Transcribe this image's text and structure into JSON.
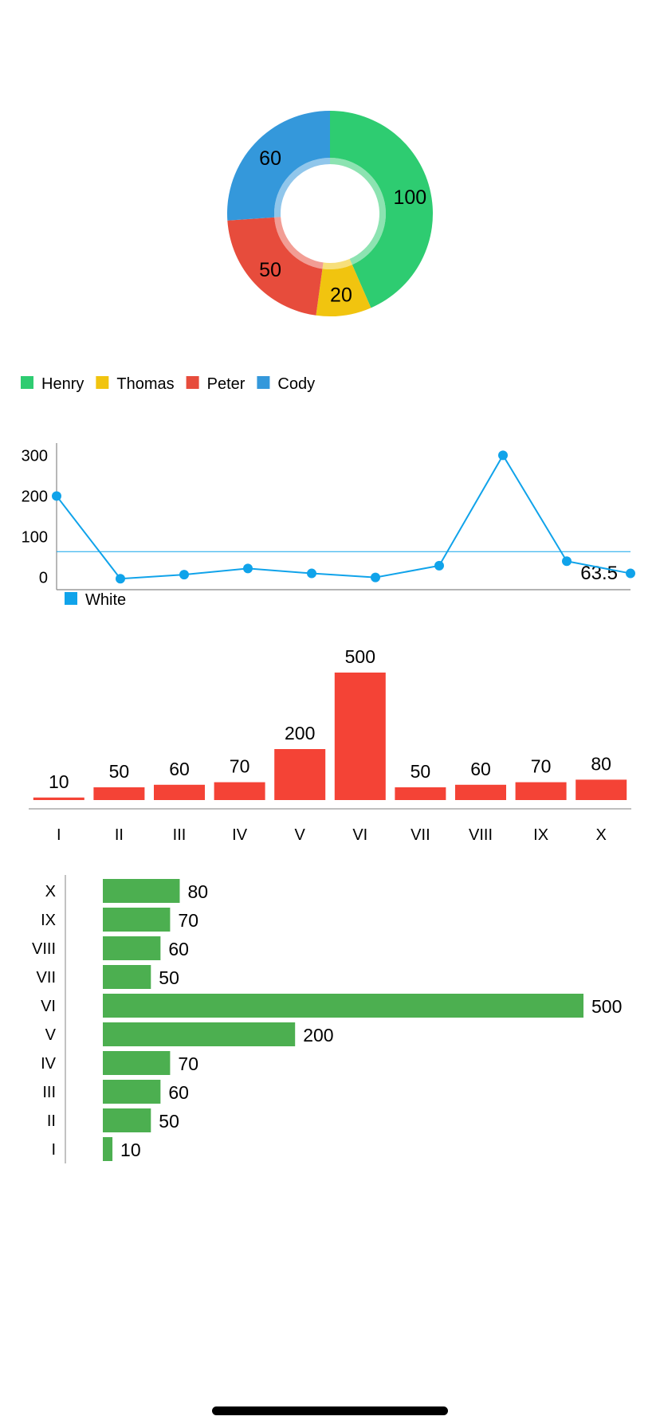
{
  "chart_data": [
    {
      "type": "pie",
      "style": "donut",
      "categories": [
        "Henry",
        "Thomas",
        "Peter",
        "Cody"
      ],
      "values": [
        100,
        20,
        50,
        60
      ],
      "colors": [
        "#2ecc71",
        "#f1c40f",
        "#e74c3c",
        "#3498db"
      ],
      "legend": "bottom-left",
      "title": "",
      "xlabel": "",
      "ylabel": ""
    },
    {
      "type": "line",
      "x": [
        0,
        1,
        2,
        3,
        4,
        5,
        6,
        7,
        8,
        9
      ],
      "series": [
        {
          "name": "White",
          "color": "#10a3ea",
          "values": [
            200,
            -3,
            7,
            22,
            10,
            0,
            29,
            300,
            40,
            10
          ]
        }
      ],
      "yticks": [
        0,
        100,
        200,
        300
      ],
      "ylim": [
        -30,
        330
      ],
      "limit_line": {
        "value": 63.5,
        "label": "63.5",
        "color": "#10a3ea"
      },
      "legend": "bottom-left",
      "grid": false,
      "title": "",
      "xlabel": "",
      "ylabel": ""
    },
    {
      "type": "bar",
      "orientation": "vertical",
      "categories": [
        "I",
        "II",
        "III",
        "IV",
        "V",
        "VI",
        "VII",
        "VIII",
        "IX",
        "X"
      ],
      "values": [
        10,
        50,
        60,
        70,
        200,
        500,
        50,
        60,
        70,
        80
      ],
      "color": "#f44336",
      "ylim": [
        0,
        500
      ],
      "grid": false,
      "title": "",
      "xlabel": "",
      "ylabel": ""
    },
    {
      "type": "bar",
      "orientation": "horizontal",
      "categories": [
        "I",
        "II",
        "III",
        "IV",
        "V",
        "VI",
        "VII",
        "VIII",
        "IX",
        "X"
      ],
      "values": [
        10,
        50,
        60,
        70,
        200,
        500,
        50,
        60,
        70,
        80
      ],
      "color": "#4caf50",
      "xlim": [
        0,
        500
      ],
      "grid": false,
      "title": "",
      "xlabel": "",
      "ylabel": ""
    }
  ]
}
